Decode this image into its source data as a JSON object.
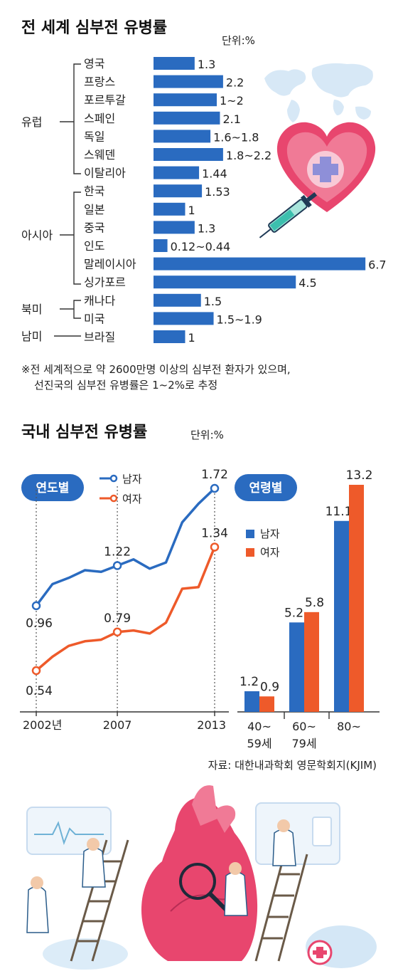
{
  "world": {
    "title": "전 세계 심부전 유병률",
    "unit": "단위:%",
    "note_lines": [
      "※전 세계적으로 약 2600만명 이상의 심부전 환자가 있으며,",
      "선진국의 심부전 유병률은 1~2%로 추정"
    ]
  },
  "korea": {
    "title": "국내 심부전 유병률",
    "unit": "단위:%",
    "by_year_label": "연도별",
    "by_age_label": "연령별",
    "legend_male": "남자",
    "legend_female": "여자",
    "source": "자료: 대한내과학회 영문학회지(KJIM)"
  },
  "colors": {
    "bar": "#2a6bc0",
    "male": "#2a6bc0",
    "female": "#ee5a2a",
    "pill": "#2a6bc0",
    "heart": "#e8466e"
  },
  "illustration_icons": [
    "world-map-icon",
    "heart-syringe-icon",
    "heart-anatomy-illustration",
    "doctor-figures-illustration"
  ],
  "chart_data": [
    {
      "type": "bar",
      "orientation": "horizontal",
      "title": "전 세계 심부전 유병률",
      "unit": "단위:%",
      "groups": [
        {
          "name": "유럽",
          "items": [
            0,
            1,
            2,
            3,
            4,
            5,
            6
          ]
        },
        {
          "name": "아시아",
          "items": [
            7,
            8,
            9,
            10,
            11,
            12
          ]
        },
        {
          "name": "북미",
          "items": [
            13,
            14
          ]
        },
        {
          "name": "남미",
          "items": [
            15
          ]
        }
      ],
      "categories": [
        "영국",
        "프랑스",
        "포르투갈",
        "스페인",
        "독일",
        "스웨덴",
        "이탈리아",
        "한국",
        "일본",
        "중국",
        "인도",
        "말레이시아",
        "싱가포르",
        "캐나다",
        "미국",
        "브라질"
      ],
      "values": [
        1.3,
        2.2,
        2,
        2.1,
        1.8,
        2.2,
        1.44,
        1.53,
        1,
        1.3,
        0.44,
        6.7,
        4.5,
        1.5,
        1.9,
        1
      ],
      "value_labels": [
        "1.3",
        "2.2",
        "1~2",
        "2.1",
        "1.6~1.8",
        "1.8~2.2",
        "1.44",
        "1.53",
        "1",
        "1.3",
        "0.12~0.44",
        "6.7",
        "4.5",
        "1.5",
        "1.5~1.9",
        "1"
      ]
    },
    {
      "type": "line",
      "title": "연도별",
      "unit": "단위:%",
      "x": [
        2002,
        2003,
        2004,
        2005,
        2006,
        2007,
        2008,
        2009,
        2010,
        2011,
        2012,
        2013
      ],
      "x_tick_labels": [
        "2002년",
        "2007",
        "2013"
      ],
      "series": [
        {
          "name": "남자",
          "values": [
            0.96,
            1.1,
            1.14,
            1.19,
            1.18,
            1.22,
            1.26,
            1.2,
            1.24,
            1.5,
            1.62,
            1.72
          ],
          "labeled": [
            {
              "x": 2002,
              "label": "0.96"
            },
            {
              "x": 2007,
              "label": "1.22"
            },
            {
              "x": 2013,
              "label": "1.72"
            }
          ]
        },
        {
          "name": "여자",
          "values": [
            0.54,
            0.63,
            0.7,
            0.73,
            0.74,
            0.79,
            0.8,
            0.78,
            0.85,
            1.07,
            1.08,
            1.34
          ],
          "labeled": [
            {
              "x": 2002,
              "label": "0.54"
            },
            {
              "x": 2007,
              "label": "0.79"
            },
            {
              "x": 2013,
              "label": "1.34"
            }
          ]
        }
      ]
    },
    {
      "type": "bar",
      "title": "연령별",
      "unit": "단위:%",
      "categories": [
        "40~59세",
        "60~79세",
        "80~"
      ],
      "category_lines": [
        [
          "40~",
          "59세"
        ],
        [
          "60~",
          "79세"
        ],
        [
          "80~",
          ""
        ]
      ],
      "series": [
        {
          "name": "남자",
          "values": [
            1.2,
            5.2,
            11.1
          ],
          "labels": [
            "1.2",
            "5.2",
            "11.1"
          ]
        },
        {
          "name": "여자",
          "values": [
            0.9,
            5.8,
            13.2
          ],
          "labels": [
            "0.9",
            "5.8",
            "13.2"
          ]
        }
      ]
    }
  ]
}
